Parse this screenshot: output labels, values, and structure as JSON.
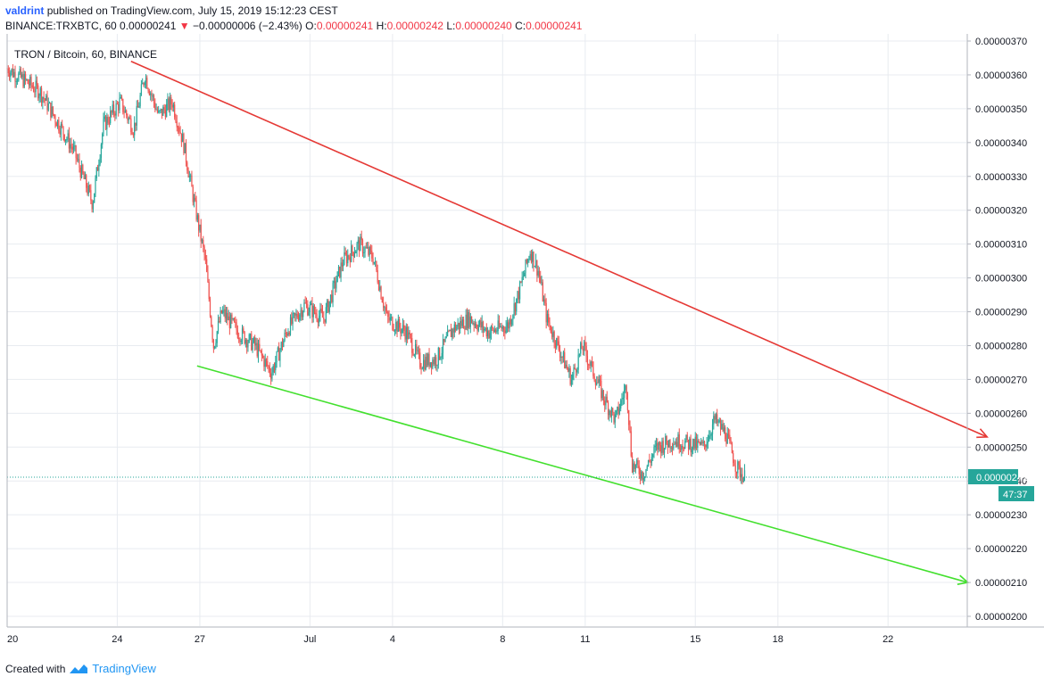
{
  "header": {
    "user": "valdrint",
    "published_text": "published on TradingView.com, July 15, 2019 15:12:23 CEST",
    "symbol": "BINANCE:TRXBTC, 60",
    "last": "0.00000241",
    "change": "−0.00000006 (−2.43%)",
    "o_label": "O:",
    "o_value": "0.00000241",
    "h_label": "H:",
    "h_value": "0.00000242",
    "l_label": "L:",
    "l_value": "0.00000240",
    "c_label": "C:",
    "c_value": "0.00000241"
  },
  "footer": {
    "created_with": "Created with",
    "brand": "TradingView"
  },
  "colors": {
    "up": "#26a69a",
    "down": "#ef5350",
    "resistance": "#e53935",
    "support": "#43e02e",
    "price_line": "#26a69a",
    "grid": "#e8ebf0"
  },
  "chart_data": {
    "type": "candlestick",
    "title": "TRON / Bitcoin, 60, BINANCE",
    "x_ticks": [
      "20",
      "24",
      "27",
      "Jul",
      "4",
      "8",
      "11",
      "15",
      "18",
      "22"
    ],
    "y_ticks": [
      "0.00000370",
      "0.00000360",
      "0.00000350",
      "0.00000340",
      "0.00000330",
      "0.00000320",
      "0.00000310",
      "0.00000300",
      "0.00000290",
      "0.00000280",
      "0.00000270",
      "0.00000260",
      "0.00000250",
      "0.00000240",
      "0.00000230",
      "0.00000220",
      "0.00000210",
      "0.00000200"
    ],
    "ylim": [
      1.97e-06,
      3.71e-06
    ],
    "current_price": "0.00000241",
    "countdown": "47:37",
    "close_path": [
      {
        "t": 0,
        "p": 3.62
      },
      {
        "t": 1.2,
        "p": 3.55
      },
      {
        "t": 2.4,
        "p": 3.38
      },
      {
        "t": 3.1,
        "p": 3.22
      },
      {
        "t": 3.5,
        "p": 3.45
      },
      {
        "t": 4.1,
        "p": 3.52
      },
      {
        "t": 4.6,
        "p": 3.44
      },
      {
        "t": 5.0,
        "p": 3.6
      },
      {
        "t": 5.5,
        "p": 3.48
      },
      {
        "t": 6.0,
        "p": 3.52
      },
      {
        "t": 6.4,
        "p": 3.4
      },
      {
        "t": 6.8,
        "p": 3.22
      },
      {
        "t": 7.2,
        "p": 3.05
      },
      {
        "t": 7.5,
        "p": 2.8
      },
      {
        "t": 7.8,
        "p": 2.9
      },
      {
        "t": 8.4,
        "p": 2.84
      },
      {
        "t": 9.0,
        "p": 2.8
      },
      {
        "t": 9.6,
        "p": 2.72
      },
      {
        "t": 10.2,
        "p": 2.85
      },
      {
        "t": 10.8,
        "p": 2.92
      },
      {
        "t": 11.5,
        "p": 2.88
      },
      {
        "t": 12.2,
        "p": 3.05
      },
      {
        "t": 12.8,
        "p": 3.1
      },
      {
        "t": 13.3,
        "p": 3.06
      },
      {
        "t": 13.8,
        "p": 2.88
      },
      {
        "t": 14.5,
        "p": 2.84
      },
      {
        "t": 15.0,
        "p": 2.75
      },
      {
        "t": 15.6,
        "p": 2.76
      },
      {
        "t": 16.2,
        "p": 2.85
      },
      {
        "t": 16.8,
        "p": 2.88
      },
      {
        "t": 17.5,
        "p": 2.84
      },
      {
        "t": 18.2,
        "p": 2.86
      },
      {
        "t": 18.6,
        "p": 2.96
      },
      {
        "t": 19.0,
        "p": 3.08
      },
      {
        "t": 19.3,
        "p": 3.02
      },
      {
        "t": 19.6,
        "p": 2.88
      },
      {
        "t": 20.0,
        "p": 2.8
      },
      {
        "t": 20.5,
        "p": 2.7
      },
      {
        "t": 20.9,
        "p": 2.8
      },
      {
        "t": 21.3,
        "p": 2.72
      },
      {
        "t": 21.7,
        "p": 2.64
      },
      {
        "t": 22.1,
        "p": 2.58
      },
      {
        "t": 22.4,
        "p": 2.66
      },
      {
        "t": 22.5,
        "p": 2.68
      },
      {
        "t": 22.7,
        "p": 2.45
      },
      {
        "t": 23.1,
        "p": 2.42
      },
      {
        "t": 23.6,
        "p": 2.5
      },
      {
        "t": 24.2,
        "p": 2.52
      },
      {
        "t": 24.8,
        "p": 2.51
      },
      {
        "t": 25.3,
        "p": 2.5
      },
      {
        "t": 25.7,
        "p": 2.58
      },
      {
        "t": 26.1,
        "p": 2.54
      },
      {
        "t": 26.5,
        "p": 2.44
      },
      {
        "t": 26.8,
        "p": 2.41
      }
    ],
    "trendlines": [
      {
        "name": "",
        "color": "#e53935",
        "start": {
          "t": 4.5,
          "p": 3.64
        },
        "end": {
          "t": 35.6,
          "p": 2.53
        },
        "arrow": true
      },
      {
        "name": "",
        "color": "#43e02e",
        "start": {
          "t": 6.9,
          "p": 2.74
        },
        "end": {
          "t": 34.9,
          "p": 2.1
        },
        "arrow": true
      }
    ]
  }
}
